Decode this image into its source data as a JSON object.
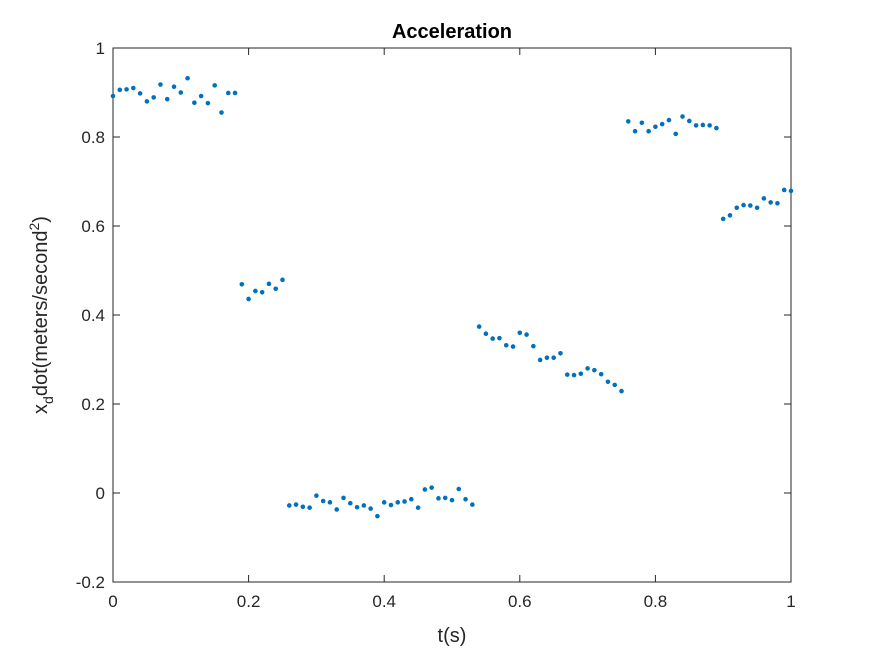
{
  "chart_data": {
    "type": "scatter",
    "title": "Acceleration",
    "xlabel": "t(s)",
    "ylabel": {
      "base": "x",
      "sub": "d",
      "mid": "dot(meters/second",
      "sup": "2",
      "end": ")"
    },
    "xlim": [
      0,
      1
    ],
    "ylim": [
      -0.2,
      1
    ],
    "xticks": [
      0,
      0.2,
      0.4,
      0.6,
      0.8,
      1
    ],
    "xtick_labels": [
      "0",
      "0.2",
      "0.4",
      "0.6",
      "0.8",
      "1"
    ],
    "yticks": [
      -0.2,
      0,
      0.2,
      0.4,
      0.6,
      0.8,
      1
    ],
    "ytick_labels": [
      "-0.2",
      "0",
      "0.2",
      "0.4",
      "0.6",
      "0.8",
      "1"
    ],
    "grid": false,
    "marker_color": "#0072BD",
    "axes_color": "#262626",
    "series": [
      {
        "x": [
          0,
          0.01,
          0.02,
          0.03,
          0.04,
          0.05,
          0.06,
          0.07,
          0.08,
          0.09,
          0.1,
          0.11,
          0.12,
          0.13,
          0.14,
          0.15,
          0.16,
          0.17,
          0.18,
          0.19,
          0.2,
          0.21,
          0.22,
          0.23,
          0.24,
          0.25,
          0.26,
          0.27,
          0.28,
          0.29,
          0.3,
          0.31,
          0.32,
          0.33,
          0.34,
          0.35,
          0.36,
          0.37,
          0.38,
          0.39,
          0.4,
          0.41,
          0.42,
          0.43,
          0.44,
          0.45,
          0.46,
          0.47,
          0.48,
          0.49,
          0.5,
          0.51,
          0.52,
          0.53,
          0.54,
          0.55,
          0.56,
          0.57,
          0.58,
          0.59,
          0.6,
          0.61,
          0.62,
          0.63,
          0.64,
          0.65,
          0.66,
          0.67,
          0.68,
          0.69,
          0.7,
          0.71,
          0.72,
          0.73,
          0.74,
          0.75,
          0.76,
          0.77,
          0.78,
          0.79,
          0.8,
          0.81,
          0.82,
          0.83,
          0.84,
          0.85,
          0.86,
          0.87,
          0.88,
          0.89,
          0.9,
          0.91,
          0.92,
          0.93,
          0.94,
          0.95,
          0.96,
          0.97,
          0.98,
          0.99,
          1.0
        ],
        "y": [
          0.892,
          0.906,
          0.907,
          0.91,
          0.898,
          0.88,
          0.889,
          0.918,
          0.885,
          0.913,
          0.9,
          0.932,
          0.877,
          0.892,
          0.876,
          0.916,
          0.855,
          0.899,
          0.899,
          0.469,
          0.436,
          0.454,
          0.451,
          0.47,
          0.459,
          0.479,
          -0.028,
          -0.026,
          -0.031,
          -0.033,
          -0.006,
          -0.018,
          -0.021,
          -0.037,
          -0.011,
          -0.023,
          -0.032,
          -0.028,
          -0.035,
          -0.052,
          -0.021,
          -0.027,
          -0.021,
          -0.019,
          -0.014,
          -0.033,
          0.008,
          0.012,
          -0.012,
          -0.011,
          -0.016,
          0.009,
          -0.014,
          -0.026,
          0.374,
          0.358,
          0.347,
          0.348,
          0.332,
          0.329,
          0.36,
          0.356,
          0.33,
          0.299,
          0.304,
          0.304,
          0.314,
          0.266,
          0.265,
          0.268,
          0.28,
          0.276,
          0.267,
          0.25,
          0.243,
          0.229,
          0.835,
          0.813,
          0.832,
          0.813,
          0.823,
          0.829,
          0.838,
          0.807,
          0.846,
          0.836,
          0.826,
          0.827,
          0.826,
          0.82,
          0.616,
          0.624,
          0.641,
          0.647,
          0.646,
          0.641,
          0.662,
          0.653,
          0.651,
          0.681,
          0.679
        ]
      }
    ]
  }
}
